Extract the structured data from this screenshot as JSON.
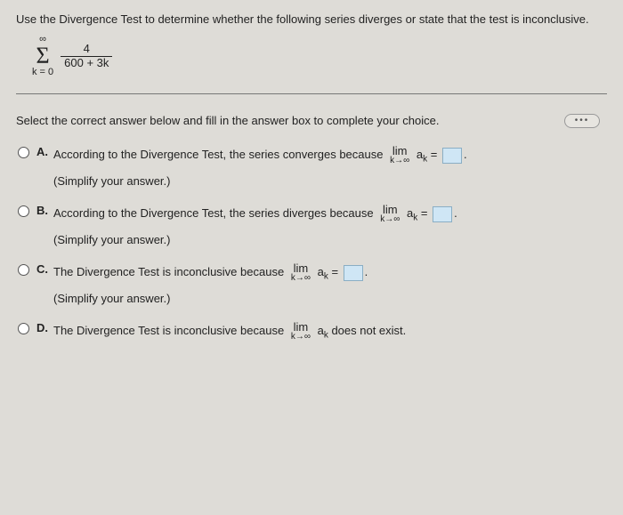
{
  "instruction": "Use the Divergence Test to determine whether the following series diverges or state that the test is inconclusive.",
  "series": {
    "sigma_top": "∞",
    "sigma_bottom": "k = 0",
    "numerator": "4",
    "denominator": "600 + 3k"
  },
  "prompt": "Select the correct answer below and fill in the answer box to complete your choice.",
  "limit": {
    "lim": "lim",
    "sub": "k→∞",
    "var": "a",
    "var_sub": "k",
    "eq": "="
  },
  "simplify": "(Simplify your answer.)",
  "options": {
    "A": {
      "letter": "A.",
      "text": "According to the Divergence Test, the series converges because",
      "after": "."
    },
    "B": {
      "letter": "B.",
      "text": "According to the Divergence Test, the series diverges because",
      "after": "."
    },
    "C": {
      "letter": "C.",
      "text": "The Divergence Test is inconclusive because",
      "after": "."
    },
    "D": {
      "letter": "D.",
      "text": "The Divergence Test is inconclusive because",
      "after": "does not exist."
    }
  },
  "dots": "•••"
}
